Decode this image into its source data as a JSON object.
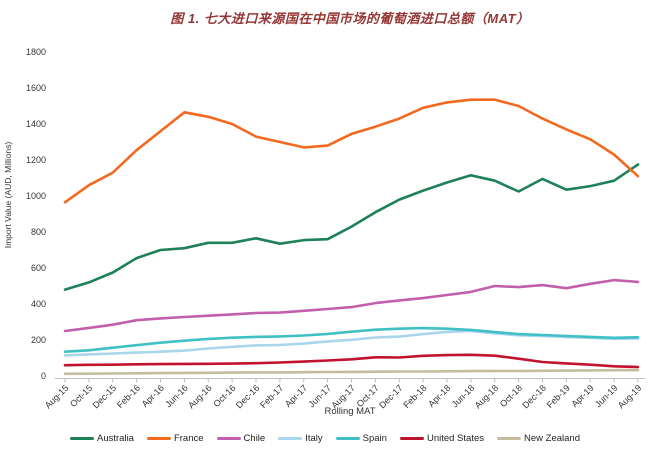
{
  "title": "图 1. 七大进口来源国在中国市场的葡萄酒进口总额（MAT）",
  "title_color": "#953735",
  "axis_text_color": "#333333",
  "axis_line_color": "#bfbfbf",
  "chart_data": {
    "type": "line",
    "title": "图 1. 七大进口来源国在中国市场的葡萄酒进口总额（MAT）",
    "ylabel": "Import Value (AUD, Millions)",
    "xlabel": "Rolling MAT",
    "ylim": [
      0,
      1800
    ],
    "yticks": [
      0,
      200,
      400,
      600,
      800,
      1000,
      1200,
      1400,
      1600,
      1800
    ],
    "grid": false,
    "legend_position": "bottom",
    "categories": [
      "Aug-15",
      "Oct-15",
      "Dec-15",
      "Feb-16",
      "Apr-16",
      "Jun-16",
      "Aug-16",
      "Oct-16",
      "Dec-16",
      "Feb-17",
      "Apr-17",
      "Jun-17",
      "Aug-17",
      "Oct-17",
      "Dec-17",
      "Feb-18",
      "Apr-18",
      "Jun-18",
      "Aug-18",
      "Oct-18",
      "Dec-18",
      "Feb-19",
      "Apr-19",
      "Jun-19",
      "Aug-19"
    ],
    "series": [
      {
        "name": "Australia",
        "color": "#1e8158",
        "values": [
          480,
          520,
          575,
          655,
          700,
          710,
          740,
          740,
          765,
          735,
          755,
          760,
          830,
          910,
          980,
          1030,
          1075,
          1115,
          1085,
          1025,
          1095,
          1035,
          1055,
          1085,
          1175
        ]
      },
      {
        "name": "France",
        "color": "#f3691f",
        "values": [
          965,
          1060,
          1130,
          1255,
          1360,
          1465,
          1440,
          1400,
          1330,
          1300,
          1270,
          1280,
          1345,
          1385,
          1430,
          1490,
          1520,
          1535,
          1535,
          1500,
          1430,
          1370,
          1315,
          1230,
          1110
        ]
      },
      {
        "name": "Chile",
        "color": "#c25fad",
        "values": [
          250,
          267,
          285,
          310,
          320,
          328,
          335,
          342,
          350,
          352,
          362,
          372,
          383,
          405,
          420,
          433,
          450,
          467,
          500,
          494,
          505,
          488,
          512,
          533,
          523
        ]
      },
      {
        "name": "Italy",
        "color": "#a9d6ec",
        "values": [
          115,
          120,
          125,
          130,
          135,
          141,
          153,
          162,
          170,
          172,
          180,
          192,
          201,
          214,
          219,
          233,
          245,
          250,
          237,
          226,
          222,
          216,
          212,
          206,
          209
        ]
      },
      {
        "name": "Spain",
        "color": "#3fc0c4",
        "values": [
          135,
          143,
          157,
          171,
          185,
          196,
          206,
          213,
          217,
          220,
          225,
          234,
          246,
          257,
          263,
          266,
          263,
          256,
          244,
          233,
          228,
          222,
          217,
          212,
          215
        ]
      },
      {
        "name": "United States",
        "color": "#c11330",
        "values": [
          60,
          62,
          63,
          65,
          66,
          67,
          68,
          69,
          71,
          75,
          80,
          86,
          93,
          104,
          103,
          112,
          116,
          118,
          113,
          96,
          78,
          70,
          63,
          54,
          50
        ]
      },
      {
        "name": "New Zealand",
        "color": "#c5bca0",
        "values": [
          12,
          13,
          14,
          15,
          16,
          17,
          18,
          19,
          20,
          20,
          21,
          22,
          23,
          24,
          25,
          25,
          26,
          27,
          28,
          28,
          29,
          30,
          31,
          32,
          33
        ]
      }
    ]
  }
}
